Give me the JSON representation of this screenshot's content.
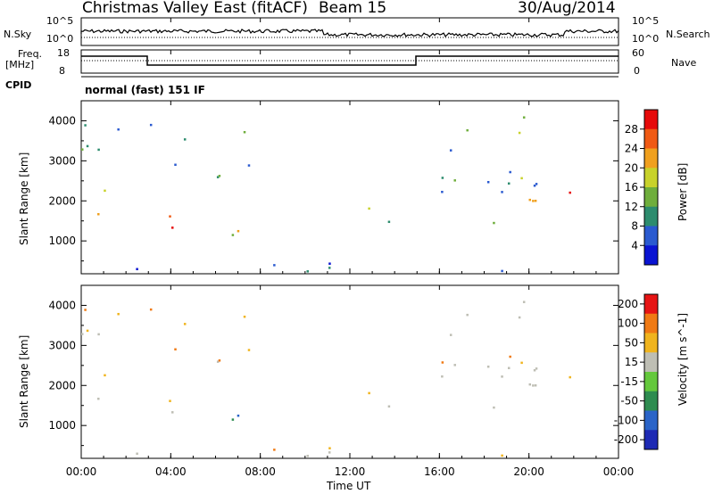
{
  "header": {
    "station": "Christmas Valley East (fitACF)",
    "beam": "Beam 15",
    "date": "30/Aug/2014"
  },
  "top_panel": {
    "nsky_label": "N.Sky",
    "nsky_ticks": [
      "10^5",
      "10^0"
    ],
    "nsearch_label": "N.Search",
    "nsearch_ticks": [
      "10^5",
      "10^0"
    ],
    "freq_label_1": "Freq.",
    "freq_label_2": "[MHz]",
    "freq_ticks": [
      "18",
      "8"
    ],
    "nave_label": "Nave",
    "nave_ticks": [
      "60",
      "0"
    ],
    "cpid_label": "CPID",
    "cpid_value": "normal (fast) 151 IF"
  },
  "chart_data": [
    {
      "type": "heatmap",
      "name": "power",
      "ylabel": "Slant Range [km]",
      "ylim": [
        180,
        4500
      ],
      "yticks": [
        "1000",
        "2000",
        "3000",
        "4000"
      ],
      "colorbar_label": "Power [dB]",
      "colorbar_ticks": [
        "4",
        "8",
        "12",
        "16",
        "20",
        "24",
        "28"
      ],
      "colors": [
        "#0a14d2",
        "#2a5ad0",
        "#2d8c6e",
        "#6fae3c",
        "#c8d22a",
        "#f0a01e",
        "#f05a14",
        "#e60a0a"
      ]
    },
    {
      "type": "heatmap",
      "name": "velocity",
      "ylabel": "Slant Range [km]",
      "ylim": [
        180,
        4500
      ],
      "yticks": [
        "1000",
        "2000",
        "3000",
        "4000"
      ],
      "colorbar_label": "Velocity [m s^-1]",
      "colorbar_ticks": [
        "200",
        "100",
        "50",
        "15",
        "-15",
        "-50",
        "-100",
        "-200"
      ],
      "colors": [
        "#1e2ab4",
        "#2a64c8",
        "#2e8c50",
        "#64c83c",
        "#bebeb4",
        "#f0b41e",
        "#f07a14",
        "#e61414"
      ]
    }
  ],
  "x_axis": {
    "label": "Time UT",
    "ticks": [
      "00:00",
      "04:00",
      "08:00",
      "12:00",
      "16:00",
      "20:00",
      "00:00"
    ],
    "range_hours": [
      0,
      24
    ]
  }
}
